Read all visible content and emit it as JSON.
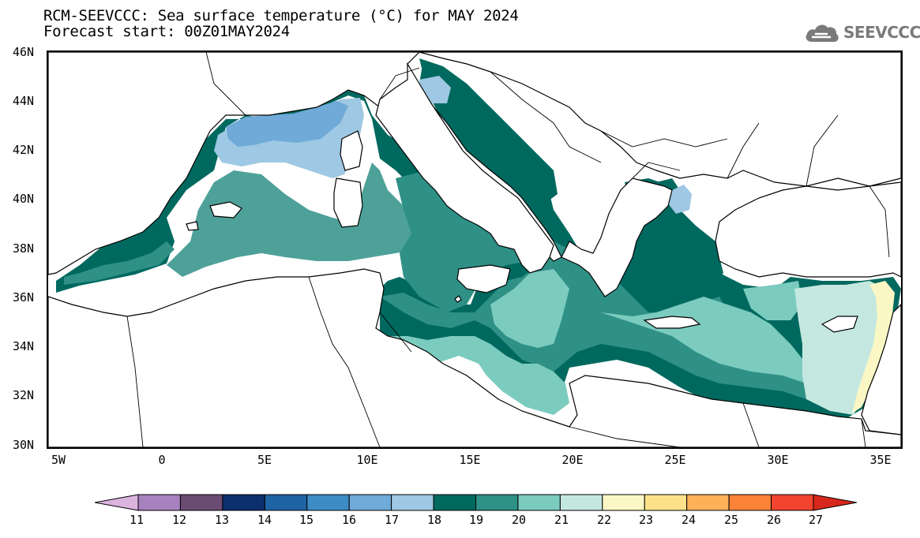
{
  "title": {
    "line1": "RCM-SEEVCCC: Sea surface temperature (°C) for MAY 2024",
    "line2": "Forecast start: 00Z01MAY2024"
  },
  "logo": {
    "text": "SEEVCCC",
    "icon": "cloud-icon"
  },
  "map": {
    "lat_labels": [
      "46N",
      "44N",
      "42N",
      "40N",
      "38N",
      "36N",
      "34N",
      "32N",
      "30N"
    ],
    "lon_labels": [
      "5W",
      "0",
      "5E",
      "10E",
      "15E",
      "20E",
      "25E",
      "30E",
      "35E"
    ],
    "sea_color": "#00695f",
    "land_color": "#ffffff"
  },
  "colorbar": {
    "labels": [
      "11",
      "12",
      "13",
      "14",
      "15",
      "16",
      "17",
      "18",
      "19",
      "20",
      "21",
      "22",
      "23",
      "24",
      "25",
      "26",
      "27"
    ],
    "colors": [
      "#dcb4e0",
      "#a782bf",
      "#6a4c72",
      "#0d2f6e",
      "#1e63a3",
      "#3e8cc6",
      "#6faad8",
      "#9ec8e3",
      "#00695f",
      "#2f9086",
      "#7bcbbf",
      "#c4e8e0",
      "#fbf7c4",
      "#fde28a",
      "#fdb25a",
      "#fa8338",
      "#f24530",
      "#d8271c"
    ]
  }
}
